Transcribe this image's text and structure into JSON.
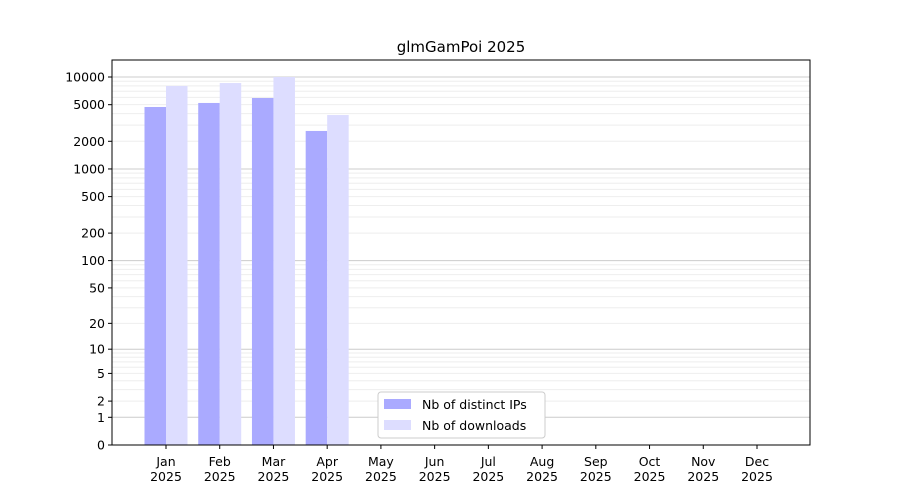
{
  "chart_data": {
    "type": "bar",
    "title": "glmGamPoi 2025",
    "xlabel": "",
    "ylabel": "",
    "yscale": "log(1+x)",
    "ylim": [
      0,
      12000
    ],
    "yticks": [
      0,
      1,
      2,
      5,
      10,
      20,
      50,
      100,
      200,
      500,
      1000,
      2000,
      5000,
      10000
    ],
    "grid": true,
    "legend_position": "bottom-center",
    "categories": [
      "Jan\n2025",
      "Feb\n2025",
      "Mar\n2025",
      "Apr\n2025",
      "May\n2025",
      "Jun\n2025",
      "Jul\n2025",
      "Aug\n2025",
      "Sep\n2025",
      "Oct\n2025",
      "Nov\n2025",
      "Dec\n2025"
    ],
    "series": [
      {
        "name": "Nb of distinct IPs",
        "color": "#aaaaff",
        "values": [
          4720,
          5220,
          5910,
          2590,
          null,
          null,
          null,
          null,
          null,
          null,
          null,
          null
        ]
      },
      {
        "name": "Nb of downloads",
        "color": "#ddddff",
        "values": [
          7990,
          8600,
          10000,
          3860,
          null,
          null,
          null,
          null,
          null,
          null,
          null,
          null
        ]
      }
    ]
  }
}
